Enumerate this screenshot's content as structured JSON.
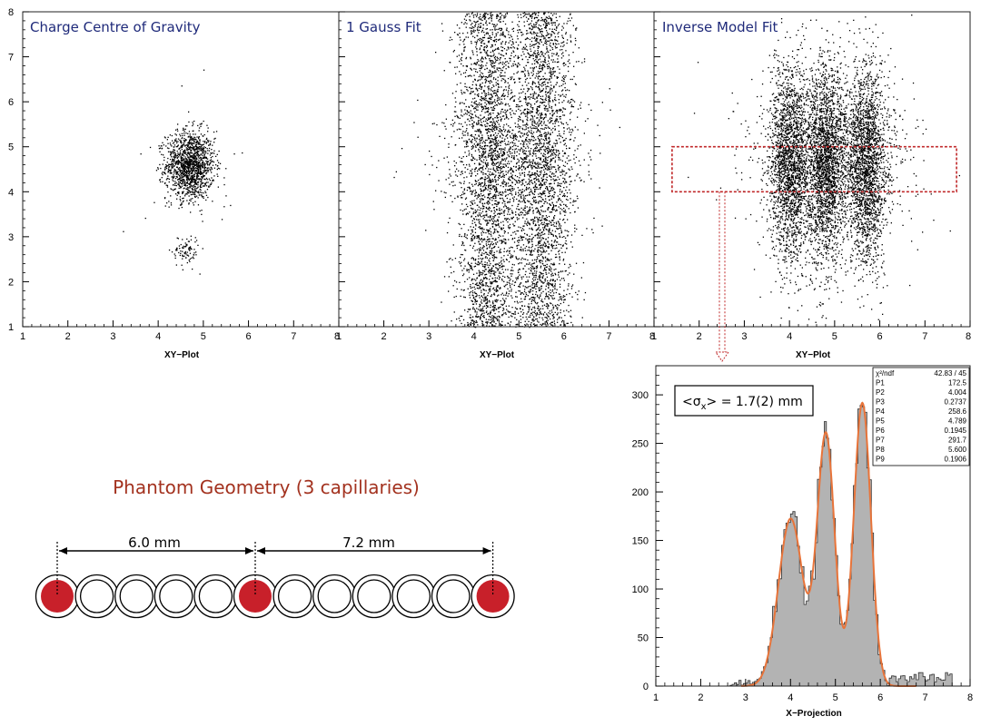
{
  "colors": {
    "panel_title": "#1f2a7a",
    "phantom_title": "#a3321f",
    "capillary_fill": "#c8202a",
    "fit_curve": "#e8743a",
    "histogram_fill": "#b3b3b3",
    "selection_box": "#c0282a"
  },
  "scatter_panels": {
    "panels": [
      {
        "title": "Charge Centre of Gravity",
        "xlabel": "XY−Plot"
      },
      {
        "title": "1 Gauss Fit",
        "xlabel": "XY−Plot"
      },
      {
        "title": "Inverse Model Fit",
        "xlabel": "XY−Plot"
      }
    ],
    "y_ticks": [
      "1",
      "2",
      "3",
      "4",
      "5",
      "6",
      "7",
      "8"
    ],
    "x_ticks": [
      "1",
      "2",
      "3",
      "4",
      "5",
      "6",
      "7",
      "8"
    ],
    "xlim": [
      1,
      8
    ],
    "ylim": [
      1,
      8
    ],
    "selection_box": {
      "x_range": [
        1.4,
        7.7
      ],
      "y_range": [
        4.0,
        5.0
      ]
    }
  },
  "histogram": {
    "xlabel": "X−Projection",
    "x_ticks": [
      "1",
      "2",
      "3",
      "4",
      "5",
      "6",
      "7",
      "8"
    ],
    "y_ticks": [
      "0",
      "50",
      "100",
      "150",
      "200",
      "250",
      "300"
    ],
    "sigma_label": "<σ",
    "sigma_sub": "x",
    "sigma_rest": "> = 1.7(2) mm",
    "stats": [
      {
        "name": "χ²/ndf",
        "value": "42.83  /  45"
      },
      {
        "name": "P1",
        "value": "172.5"
      },
      {
        "name": "P2",
        "value": "4.004"
      },
      {
        "name": "P3",
        "value": "0.2737"
      },
      {
        "name": "P4",
        "value": "258.6"
      },
      {
        "name": "P5",
        "value": "4.789"
      },
      {
        "name": "P6",
        "value": "0.1945"
      },
      {
        "name": "P7",
        "value": "291.7"
      },
      {
        "name": "P8",
        "value": "5.600"
      },
      {
        "name": "P9",
        "value": "0.1906"
      }
    ]
  },
  "chart_data": [
    {
      "type": "scatter",
      "title": "Charge Centre of Gravity",
      "xlabel": "XY−Plot",
      "xlim": [
        1,
        8
      ],
      "ylim": [
        1,
        8
      ],
      "clusters": [
        {
          "x_center": 4.7,
          "y_center": 4.6,
          "x_range": [
            4.0,
            5.4
          ],
          "y_range": [
            3.6,
            5.6
          ],
          "density": "very high"
        },
        {
          "x_center": 4.6,
          "y_center": 2.7,
          "x_range": [
            4.2,
            5.0
          ],
          "y_range": [
            2.3,
            3.1
          ],
          "density": "low"
        }
      ]
    },
    {
      "type": "scatter",
      "title": "1 Gauss Fit",
      "xlabel": "XY−Plot",
      "xlim": [
        1,
        8
      ],
      "ylim": [
        1,
        8
      ],
      "bands": [
        {
          "x_center": 4.3,
          "y_range": [
            1,
            8
          ]
        },
        {
          "x_center": 5.5,
          "y_range": [
            1,
            8
          ]
        }
      ],
      "x_extent": [
        3.2,
        6.8
      ]
    },
    {
      "type": "scatter",
      "title": "Inverse Model Fit",
      "xlabel": "XY−Plot",
      "xlim": [
        1,
        8
      ],
      "ylim": [
        1,
        8
      ],
      "bands": [
        {
          "x_center": 4.0,
          "y_range": [
            2.0,
            7.2
          ]
        },
        {
          "x_center": 4.8,
          "y_range": [
            2.0,
            7.2
          ]
        },
        {
          "x_center": 5.7,
          "y_range": [
            2.0,
            7.2
          ]
        }
      ]
    },
    {
      "type": "bar",
      "title": "",
      "xlabel": "X−Projection",
      "ylabel": "",
      "xlim": [
        1,
        8
      ],
      "ylim": [
        0,
        330
      ],
      "peaks": [
        {
          "x": 4.0,
          "y": 172
        },
        {
          "x": 4.8,
          "y": 270
        },
        {
          "x": 5.6,
          "y": 298
        }
      ],
      "fit": {
        "function": "sum of three Gaussians",
        "params": [
          {
            "amplitude": 172.5,
            "mean": 4.004,
            "sigma": 0.2737
          },
          {
            "amplitude": 258.6,
            "mean": 4.789,
            "sigma": 0.1945
          },
          {
            "amplitude": 291.7,
            "mean": 5.6,
            "sigma": 0.1906
          }
        ],
        "chi2_ndf": "42.83 / 45"
      },
      "annotation": "<σx> = 1.7(2) mm"
    }
  ],
  "phantom": {
    "title": "Phantom Geometry (3 capillaries)",
    "dim_left": "6.0 mm",
    "dim_right": "7.2 mm",
    "capillary_count": 12,
    "filled_indices": [
      0,
      5,
      11
    ]
  }
}
